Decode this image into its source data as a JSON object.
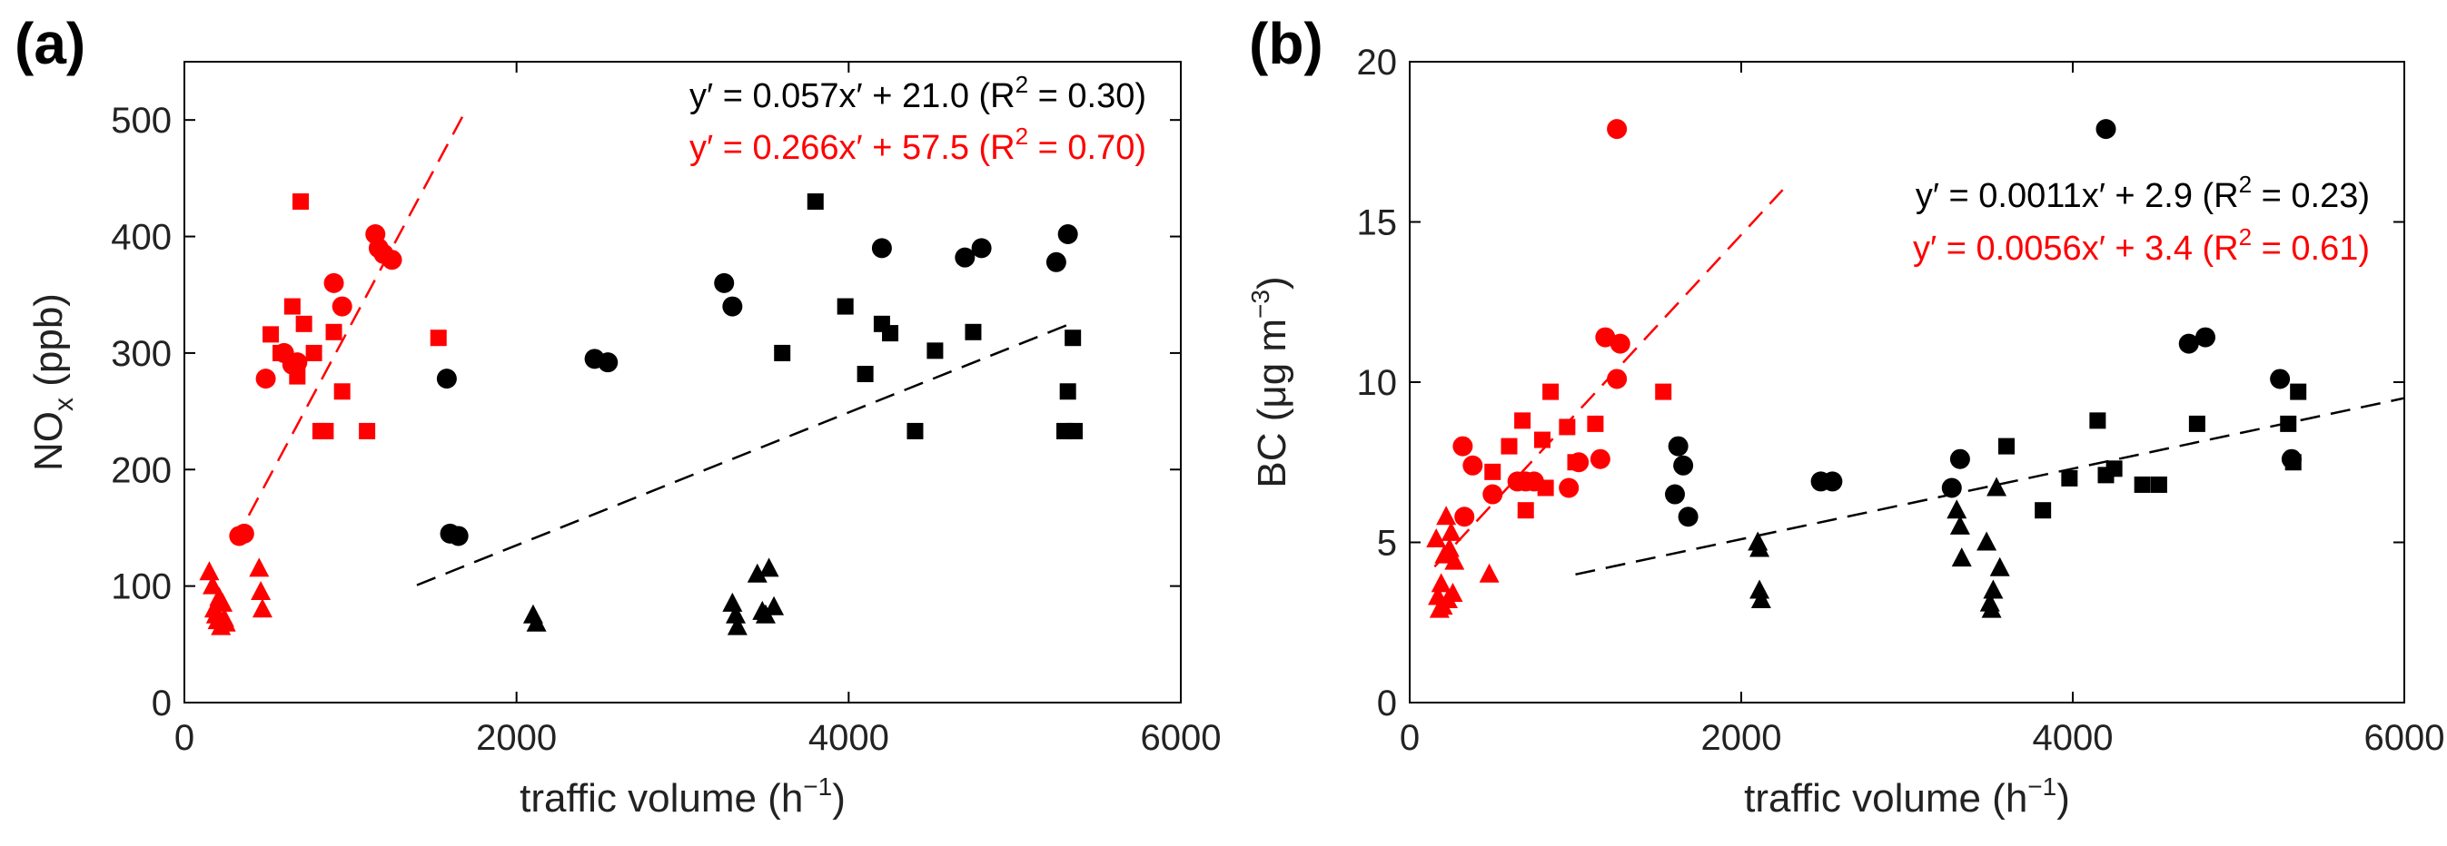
{
  "chart_data": [
    {
      "type": "scatter",
      "panel_label": "(a)",
      "xlabel_main": "traffic volume (h",
      "xlabel_exp": "−1",
      "xlabel_end": ")",
      "ylabel_main": "NO",
      "ylabel_sub": "x",
      "ylabel_end": " (ppb)",
      "xlim": [
        0,
        6000
      ],
      "ylim": [
        0,
        550
      ],
      "xticks": [
        0,
        2000,
        4000,
        6000
      ],
      "yticks": [
        0,
        100,
        200,
        300,
        400,
        500
      ],
      "colors": {
        "black": "#000000",
        "red": "#ff0000"
      },
      "equations": [
        {
          "pre": "y′ = 0.057x′ + 21.0 (R",
          "sup": "2",
          "post": " = 0.30)",
          "color": "#000000"
        },
        {
          "pre": "y′ = 0.266x′ + 57.5 (R",
          "sup": "2",
          "post": " = 0.70)",
          "color": "#ff0000"
        }
      ],
      "fit_lines": [
        {
          "name": "black-fit",
          "color": "#000000",
          "slope": 0.057,
          "intercept": 21.0,
          "x_range": [
            1400,
            5350
          ]
        },
        {
          "name": "red-fit",
          "color": "#ff0000",
          "slope": 0.266,
          "intercept": 57.5,
          "x_range": [
            300,
            1700
          ]
        }
      ],
      "series": [
        {
          "name": "red circles",
          "color": "#ff0000",
          "marker": "circle",
          "points": [
            [
              330,
              143
            ],
            [
              360,
              145
            ],
            [
              490,
              278
            ],
            [
              600,
              300
            ],
            [
              650,
              290
            ],
            [
              680,
              292
            ],
            [
              900,
              360
            ],
            [
              950,
              340
            ],
            [
              1150,
              402
            ],
            [
              1170,
              390
            ],
            [
              1200,
              385
            ],
            [
              1250,
              380
            ]
          ]
        },
        {
          "name": "red squares",
          "color": "#ff0000",
          "marker": "square",
          "points": [
            [
              520,
              316
            ],
            [
              580,
              300
            ],
            [
              650,
              340
            ],
            [
              700,
              430
            ],
            [
              720,
              325
            ],
            [
              780,
              300
            ],
            [
              820,
              233
            ],
            [
              850,
              233
            ],
            [
              900,
              318
            ],
            [
              950,
              267
            ],
            [
              1100,
              233
            ],
            [
              1530,
              313
            ],
            [
              680,
              280
            ]
          ]
        },
        {
          "name": "red triangles",
          "color": "#ff0000",
          "marker": "triangle",
          "points": [
            [
              150,
              112
            ],
            [
              170,
              100
            ],
            [
              180,
              80
            ],
            [
              190,
              75
            ],
            [
              200,
              70
            ],
            [
              210,
              90
            ],
            [
              220,
              65
            ],
            [
              230,
              85
            ],
            [
              240,
              72
            ],
            [
              250,
              68
            ],
            [
              450,
              115
            ],
            [
              460,
              95
            ],
            [
              470,
              80
            ]
          ]
        },
        {
          "name": "black circles",
          "color": "#000000",
          "marker": "circle",
          "points": [
            [
              1580,
              278
            ],
            [
              1600,
              145
            ],
            [
              1650,
              143
            ],
            [
              2470,
              295
            ],
            [
              2550,
              292
            ],
            [
              3250,
              360
            ],
            [
              3300,
              340
            ],
            [
              4200,
              390
            ],
            [
              4700,
              382
            ],
            [
              4800,
              390
            ],
            [
              5250,
              378
            ],
            [
              5320,
              402
            ]
          ]
        },
        {
          "name": "black squares",
          "color": "#000000",
          "marker": "square",
          "points": [
            [
              3600,
              300
            ],
            [
              3800,
              430
            ],
            [
              3980,
              340
            ],
            [
              4100,
              282
            ],
            [
              4200,
              325
            ],
            [
              4250,
              317
            ],
            [
              4400,
              233
            ],
            [
              4520,
              302
            ],
            [
              4750,
              318
            ],
            [
              5300,
              233
            ],
            [
              5320,
              267
            ],
            [
              5350,
              313
            ],
            [
              5360,
              233
            ]
          ]
        },
        {
          "name": "black triangles",
          "color": "#000000",
          "marker": "triangle",
          "points": [
            [
              2100,
              75
            ],
            [
              2120,
              68
            ],
            [
              3300,
              85
            ],
            [
              3320,
              75
            ],
            [
              3330,
              65
            ],
            [
              3450,
              110
            ],
            [
              3480,
              78
            ],
            [
              3500,
              75
            ],
            [
              3520,
              115
            ],
            [
              3550,
              82
            ]
          ]
        }
      ]
    },
    {
      "type": "scatter",
      "panel_label": "(b)",
      "xlabel_main": "traffic volume (h",
      "xlabel_exp": "−1",
      "xlabel_end": ")",
      "ylabel_main": "BC (μg m",
      "ylabel_sup": "−3",
      "ylabel_end": ")",
      "xlim": [
        0,
        6000
      ],
      "ylim": [
        0,
        20
      ],
      "xticks": [
        0,
        2000,
        4000,
        6000
      ],
      "yticks": [
        0,
        5,
        10,
        15,
        20
      ],
      "colors": {
        "black": "#000000",
        "red": "#ff0000"
      },
      "equations": [
        {
          "pre": "y′ = 0.0011x′ + 2.9 (R",
          "sup": "2",
          "post": " = 0.23)",
          "color": "#000000"
        },
        {
          "pre": "y′ = 0.0056x′ + 3.4 (R",
          "sup": "2",
          "post": " = 0.61)",
          "color": "#ff0000"
        }
      ],
      "fit_lines": [
        {
          "name": "black-fit",
          "color": "#000000",
          "slope": 0.0011,
          "intercept": 2.9,
          "x_range": [
            1000,
            6000
          ]
        },
        {
          "name": "red-fit",
          "color": "#ff0000",
          "slope": 0.0056,
          "intercept": 3.4,
          "x_range": [
            150,
            2250
          ]
        }
      ],
      "series": [
        {
          "name": "red circles",
          "color": "#ff0000",
          "marker": "circle",
          "points": [
            [
              320,
              8
            ],
            [
              330,
              5.8
            ],
            [
              380,
              7.4
            ],
            [
              500,
              6.5
            ],
            [
              650,
              6.9
            ],
            [
              700,
              6.9
            ],
            [
              750,
              6.9
            ],
            [
              960,
              6.7
            ],
            [
              1020,
              7.5
            ],
            [
              1150,
              7.6
            ],
            [
              1180,
              11.4
            ],
            [
              1250,
              10.1
            ],
            [
              1270,
              11.2
            ],
            [
              1250,
              17.9
            ]
          ]
        },
        {
          "name": "red squares",
          "color": "#ff0000",
          "marker": "square",
          "points": [
            [
              500,
              7.2
            ],
            [
              600,
              8
            ],
            [
              680,
              8.8
            ],
            [
              700,
              6
            ],
            [
              800,
              8.2
            ],
            [
              820,
              6.7
            ],
            [
              850,
              9.7
            ],
            [
              950,
              8.6
            ],
            [
              1000,
              7.5
            ],
            [
              1120,
              8.7
            ],
            [
              1530,
              9.7
            ]
          ]
        },
        {
          "name": "red triangles",
          "color": "#ff0000",
          "marker": "triangle",
          "points": [
            [
              160,
              5.1
            ],
            [
              170,
              3.3
            ],
            [
              180,
              2.9
            ],
            [
              190,
              3.7
            ],
            [
              200,
              3.0
            ],
            [
              210,
              4.6
            ],
            [
              220,
              5.8
            ],
            [
              230,
              3.2
            ],
            [
              240,
              4.8
            ],
            [
              250,
              5.3
            ],
            [
              260,
              3.4
            ],
            [
              270,
              4.4
            ],
            [
              480,
              4.0
            ]
          ]
        },
        {
          "name": "black circles",
          "color": "#000000",
          "marker": "circle",
          "points": [
            [
              1600,
              6.5
            ],
            [
              1620,
              8
            ],
            [
              1650,
              7.4
            ],
            [
              1680,
              5.8
            ],
            [
              2480,
              6.9
            ],
            [
              2550,
              6.9
            ],
            [
              3270,
              6.7
            ],
            [
              3320,
              7.6
            ],
            [
              4200,
              17.9
            ],
            [
              4700,
              11.2
            ],
            [
              4800,
              11.4
            ],
            [
              5250,
              10.1
            ],
            [
              5320,
              7.6
            ]
          ]
        },
        {
          "name": "black squares",
          "color": "#000000",
          "marker": "square",
          "points": [
            [
              3600,
              8
            ],
            [
              3820,
              6
            ],
            [
              3980,
              7
            ],
            [
              4150,
              8.8
            ],
            [
              4200,
              7.1
            ],
            [
              4250,
              7.3
            ],
            [
              4420,
              6.8
            ],
            [
              4520,
              6.8
            ],
            [
              4750,
              8.7
            ],
            [
              5300,
              8.7
            ],
            [
              5330,
              7.5
            ],
            [
              5360,
              9.7
            ]
          ]
        },
        {
          "name": "black triangles",
          "color": "#000000",
          "marker": "triangle",
          "points": [
            [
              2100,
              5
            ],
            [
              2110,
              4.8
            ],
            [
              2110,
              3.5
            ],
            [
              2120,
              3.2
            ],
            [
              3300,
              6
            ],
            [
              3320,
              5.5
            ],
            [
              3330,
              4.5
            ],
            [
              3480,
              5
            ],
            [
              3500,
              3.1
            ],
            [
              3510,
              2.9
            ],
            [
              3520,
              3.5
            ],
            [
              3540,
              6.7
            ],
            [
              3560,
              4.2
            ]
          ]
        }
      ]
    }
  ]
}
